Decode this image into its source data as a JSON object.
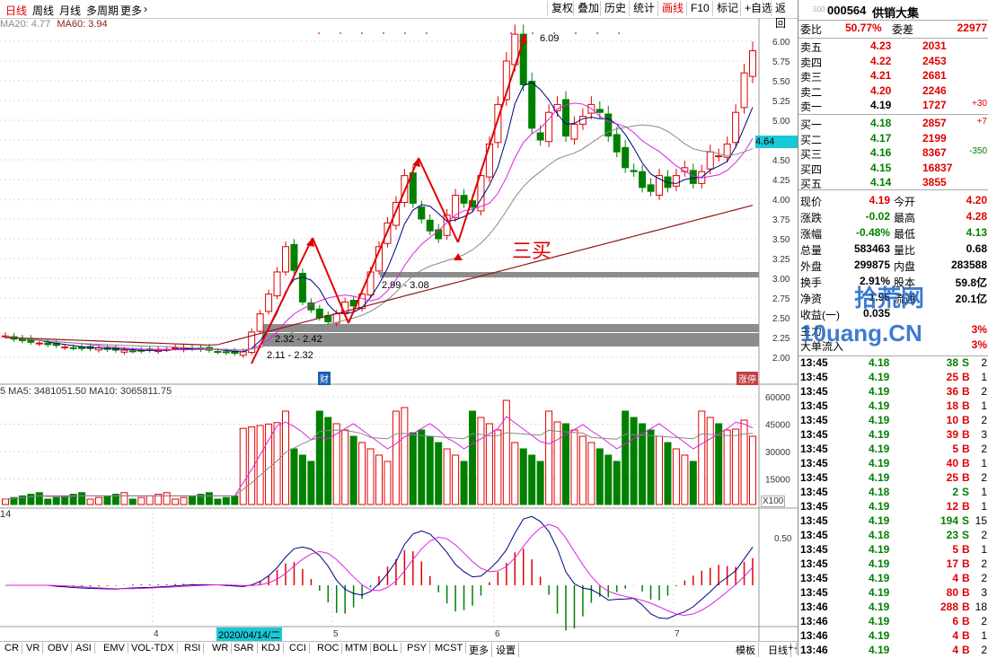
{
  "periods": [
    "日线",
    "周线",
    "月线",
    "多周期",
    "更多"
  ],
  "toolbar": [
    "复权",
    "叠加",
    "历史",
    "统计",
    "画线",
    "F10",
    "标记",
    "+自选",
    "返回"
  ],
  "ma_line": {
    "ma20": "MA20: 4.77",
    "ma60": "MA60: 3.94"
  },
  "price_axis": [
    "6.00",
    "5.75",
    "5.50",
    "5.25",
    "5.00",
    "4.75",
    "4.50",
    "4.25",
    "4.00",
    "3.75",
    "3.50",
    "3.25",
    "3.00",
    "2.75",
    "2.50",
    "2.25",
    "2.00"
  ],
  "current_price_tag": "4.64",
  "annotations": {
    "peak": "6.09",
    "zone1": "2.99 - 3.08",
    "zone2": "2.32 - 2.42",
    "zone3": "2.11 - 2.32",
    "third_buy": "三买",
    "cai_badge": "财",
    "zhangting": "涨停"
  },
  "volume": {
    "header": "5  MA5: 3481051.50  MA10: 3065811.75",
    "axis": [
      "60000",
      "45000",
      "30000",
      "15000"
    ],
    "unit": "X100"
  },
  "macd": {
    "header": "14",
    "axis_label": "0.50"
  },
  "date_axis": {
    "labels": [
      "4",
      "5",
      "6",
      "7"
    ],
    "highlight": "2020/04/14/二"
  },
  "indicator_tabs": [
    "CR",
    "VR",
    "OBV",
    "ASI",
    "EMV",
    "VOL-TDX",
    "RSI",
    "WR",
    "SAR",
    "KDJ",
    "CCI",
    "ROC",
    "MTM",
    "BOLL",
    "PSY",
    "MCST",
    "更多",
    "设置"
  ],
  "bottom_right": [
    "模板",
    "日线",
    "+",
    "-"
  ],
  "stock": {
    "code": "000564",
    "name": "供销大集",
    "small": "500"
  },
  "weibi": {
    "label": "委比",
    "value": "50.77%",
    "label2": "委差",
    "value2": "22977"
  },
  "sells": [
    {
      "label": "卖五",
      "price": "4.23",
      "vol": "2031",
      "chg": ""
    },
    {
      "label": "卖四",
      "price": "4.22",
      "vol": "2453",
      "chg": ""
    },
    {
      "label": "卖三",
      "price": "4.21",
      "vol": "2681",
      "chg": ""
    },
    {
      "label": "卖二",
      "price": "4.20",
      "vol": "2246",
      "chg": ""
    },
    {
      "label": "卖一",
      "price": "4.19",
      "vol": "1727",
      "chg": "+30"
    }
  ],
  "buys": [
    {
      "label": "买一",
      "price": "4.18",
      "vol": "2857",
      "chg": "+7"
    },
    {
      "label": "买二",
      "price": "4.17",
      "vol": "2199",
      "chg": ""
    },
    {
      "label": "买三",
      "price": "4.16",
      "vol": "8367",
      "chg": "-350"
    },
    {
      "label": "买四",
      "price": "4.15",
      "vol": "16837",
      "chg": ""
    },
    {
      "label": "买五",
      "price": "4.14",
      "vol": "3855",
      "chg": ""
    }
  ],
  "quote": [
    {
      "l1": "现价",
      "v1": "4.19",
      "l2": "今开",
      "v2": "4.20"
    },
    {
      "l1": "涨跌",
      "v1": "-0.02",
      "l2": "最高",
      "v2": "4.28"
    },
    {
      "l1": "涨幅",
      "v1": "-0.48%",
      "l2": "最低",
      "v2": "4.13"
    },
    {
      "l1": "总量",
      "v1": "583463",
      "l2": "量比",
      "v2": "0.68"
    },
    {
      "l1": "外盘",
      "v1": "299875",
      "l2": "内盘",
      "v2": "283588"
    },
    {
      "l1": "换手",
      "v1": "2.91%",
      "l2": "股本",
      "v2": "59.8亿"
    },
    {
      "l1": "净资",
      "v1": "1.96",
      "l2": "流通",
      "v2": "20.1亿"
    },
    {
      "l1": "收益(一)",
      "v1": "0.035",
      "l2": "",
      "v2": ""
    }
  ],
  "flow": [
    {
      "label": "主力",
      "right": "3%"
    },
    {
      "label": "大单流入",
      "right": "3%"
    }
  ],
  "watermark": {
    "cn": "拾荒网",
    "en": "10uang.CN"
  },
  "ticks": [
    {
      "t": "13:45",
      "p": "4.18",
      "v": "38",
      "s": "S",
      "n": "2"
    },
    {
      "t": "13:45",
      "p": "4.19",
      "v": "25",
      "s": "B",
      "n": "1"
    },
    {
      "t": "13:45",
      "p": "4.19",
      "v": "36",
      "s": "B",
      "n": "2"
    },
    {
      "t": "13:45",
      "p": "4.19",
      "v": "18",
      "s": "B",
      "n": "1"
    },
    {
      "t": "13:45",
      "p": "4.19",
      "v": "10",
      "s": "B",
      "n": "2"
    },
    {
      "t": "13:45",
      "p": "4.19",
      "v": "39",
      "s": "B",
      "n": "3"
    },
    {
      "t": "13:45",
      "p": "4.19",
      "v": "5",
      "s": "B",
      "n": "2"
    },
    {
      "t": "13:45",
      "p": "4.19",
      "v": "40",
      "s": "B",
      "n": "1"
    },
    {
      "t": "13:45",
      "p": "4.19",
      "v": "25",
      "s": "B",
      "n": "2"
    },
    {
      "t": "13:45",
      "p": "4.18",
      "v": "2",
      "s": "S",
      "n": "1"
    },
    {
      "t": "13:45",
      "p": "4.19",
      "v": "12",
      "s": "B",
      "n": "1"
    },
    {
      "t": "13:45",
      "p": "4.19",
      "v": "194",
      "s": "S",
      "n": "15"
    },
    {
      "t": "13:45",
      "p": "4.18",
      "v": "23",
      "s": "S",
      "n": "2"
    },
    {
      "t": "13:45",
      "p": "4.19",
      "v": "5",
      "s": "B",
      "n": "1"
    },
    {
      "t": "13:45",
      "p": "4.19",
      "v": "17",
      "s": "B",
      "n": "2"
    },
    {
      "t": "13:45",
      "p": "4.19",
      "v": "4",
      "s": "B",
      "n": "2"
    },
    {
      "t": "13:45",
      "p": "4.19",
      "v": "80",
      "s": "B",
      "n": "3"
    },
    {
      "t": "13:46",
      "p": "4.19",
      "v": "288",
      "s": "B",
      "n": "18"
    },
    {
      "t": "13:46",
      "p": "4.19",
      "v": "6",
      "s": "B",
      "n": "2"
    },
    {
      "t": "13:46",
      "p": "4.19",
      "v": "4",
      "s": "B",
      "n": "1"
    },
    {
      "t": "13:46",
      "p": "4.19",
      "v": "4",
      "s": "B",
      "n": "2"
    }
  ],
  "colors": {
    "up": "#e00000",
    "down": "#008000",
    "ma5": "#000080",
    "ma10": "#e020e0",
    "ma20": "#888888",
    "ma60": "#8b1a1a",
    "zone": "#8c8c8c"
  }
}
